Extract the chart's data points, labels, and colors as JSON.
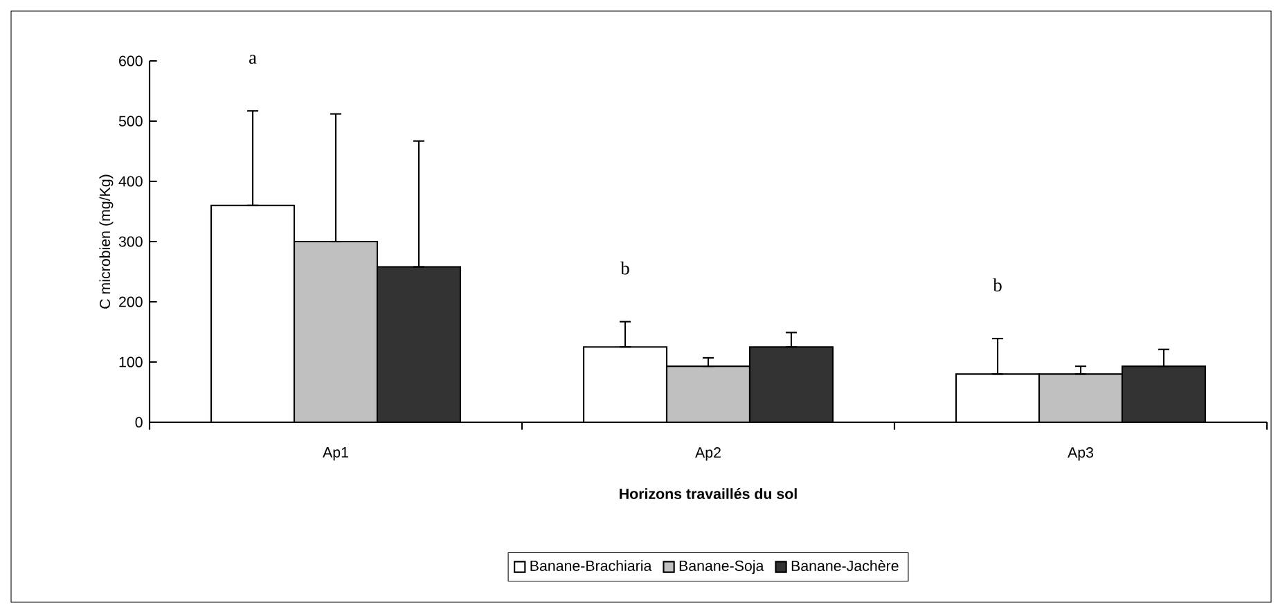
{
  "chart_data": {
    "type": "bar",
    "xlabel": "Horizons travaillés du sol",
    "ylabel": "C microbien (mg/Kg)",
    "categories": [
      "Ap1",
      "Ap2",
      "Ap3"
    ],
    "series": [
      {
        "name": "Banane-Brachiaria",
        "color": "#ffffff",
        "values": [
          360,
          125,
          80
        ],
        "errors": [
          [
            360,
            517
          ],
          [
            125,
            167
          ],
          [
            80,
            139
          ]
        ]
      },
      {
        "name": "Banane-Soja",
        "color": "#c0c0c0",
        "values": [
          300,
          93,
          80
        ],
        "errors": [
          [
            300,
            512
          ],
          [
            93,
            107
          ],
          [
            80,
            93
          ]
        ]
      },
      {
        "name": "Banane-Jachère",
        "color": "#333333",
        "values": [
          258,
          125,
          93
        ],
        "errors": [
          [
            258,
            467
          ],
          [
            125,
            149
          ],
          [
            93,
            121
          ]
        ]
      }
    ],
    "ylim": [
      0,
      600
    ],
    "yticks": [
      0,
      100,
      200,
      300,
      400,
      500,
      600
    ],
    "grid": false,
    "legend": "bottom",
    "annotations": [
      "a",
      "b",
      "b"
    ]
  }
}
